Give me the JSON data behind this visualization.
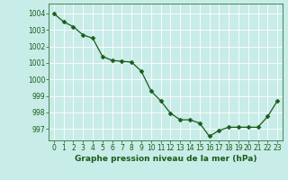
{
  "x": [
    0,
    1,
    2,
    3,
    4,
    5,
    6,
    7,
    8,
    9,
    10,
    11,
    12,
    13,
    14,
    15,
    16,
    17,
    18,
    19,
    20,
    21,
    22,
    23
  ],
  "y": [
    1004.0,
    1003.5,
    1003.2,
    1002.7,
    1002.5,
    1001.4,
    1001.15,
    1001.1,
    1001.05,
    1000.5,
    999.3,
    998.7,
    997.95,
    997.55,
    997.55,
    997.35,
    996.55,
    996.9,
    997.1,
    997.1,
    997.1,
    997.1,
    997.75,
    998.7
  ],
  "line_color": "#1a5c1a",
  "marker": "D",
  "marker_size": 2.5,
  "bg_color": "#c8ece8",
  "grid_color": "#ffffff",
  "ylabel_values": [
    997,
    998,
    999,
    1000,
    1001,
    1002,
    1003,
    1004
  ],
  "ylim": [
    996.3,
    1004.6
  ],
  "xlim": [
    -0.5,
    23.5
  ],
  "xlabel": "Graphe pression niveau de la mer (hPa)",
  "xlabel_color": "#1a5c1a",
  "tick_color": "#1a5c1a",
  "label_fontsize": 5.5,
  "xlabel_fontsize": 6.5
}
